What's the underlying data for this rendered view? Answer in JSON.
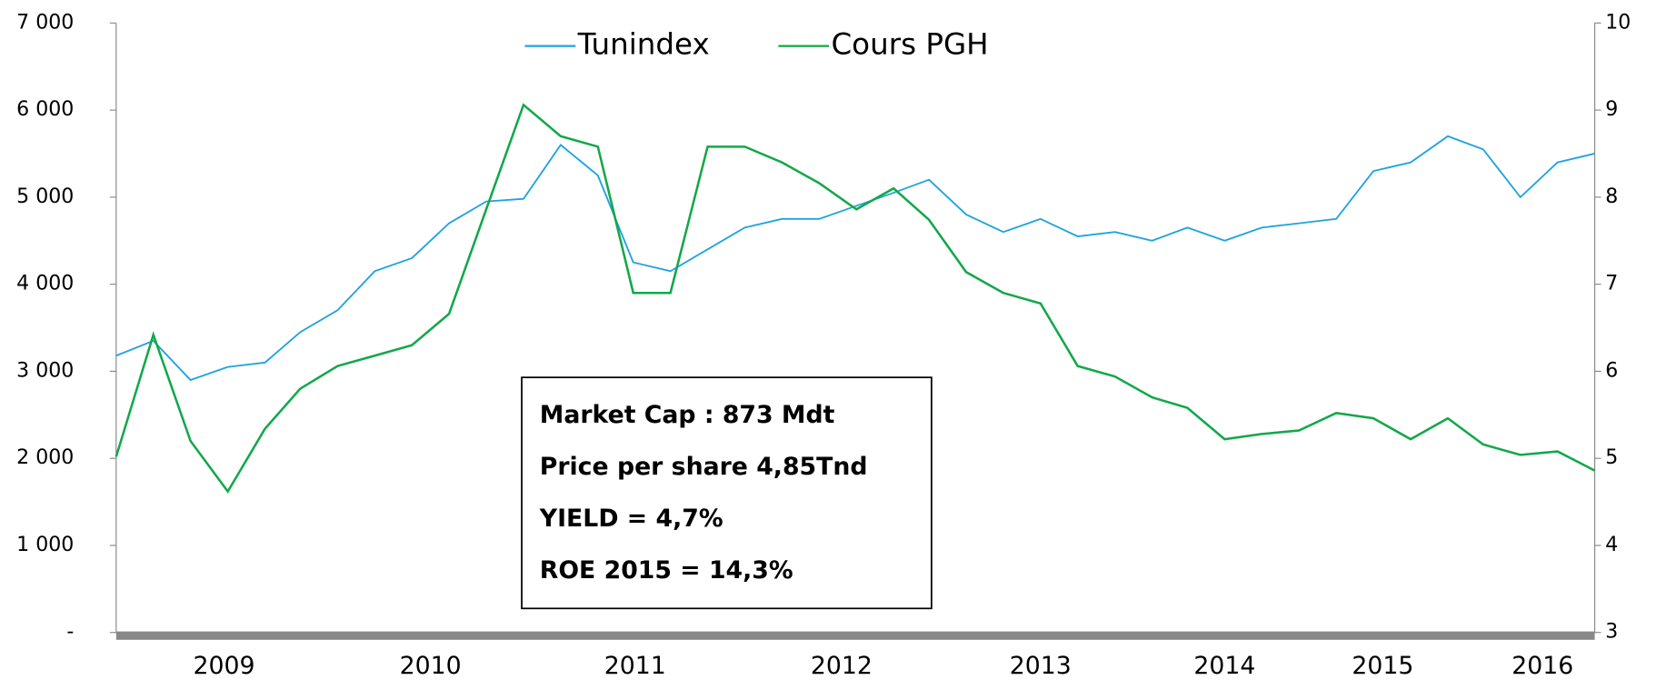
{
  "chart_data": {
    "type": "line",
    "x": [
      2008.5,
      2008.7,
      2008.9,
      2009.1,
      2009.3,
      2009.49,
      2009.69,
      2009.89,
      2010.09,
      2010.29,
      2010.49,
      2010.69,
      2010.89,
      2011.09,
      2011.28,
      2011.48,
      2011.68,
      2011.88,
      2012.08,
      2012.28,
      2012.48,
      2012.68,
      2012.87,
      2013.07,
      2013.27,
      2013.47,
      2013.67,
      2013.87,
      2014.07,
      2014.26,
      2014.46,
      2014.66,
      2014.86,
      2015.06,
      2015.26,
      2015.46,
      2015.66,
      2015.85,
      2016.05,
      2016.25,
      2016.45
    ],
    "series": [
      {
        "name": "Tunindex",
        "color": "#1fa3e0",
        "values": [
          3180,
          3350,
          2900,
          3050,
          3100,
          3450,
          3700,
          4150,
          4300,
          4700,
          4950,
          4980,
          5600,
          5250,
          4250,
          4150,
          4400,
          4650,
          4750,
          4750,
          4900,
          5050,
          5200,
          4800,
          4600,
          4750,
          4550,
          4600,
          4500,
          4650,
          4500,
          4650,
          4700,
          4750,
          5300,
          5400,
          5700,
          5550,
          5000,
          5400,
          5500
        ]
      },
      {
        "name": "Cours PGH",
        "color": "#12a84a",
        "axis": "y2",
        "values": [
          5.02,
          6.42,
          5.2,
          4.62,
          5.34,
          5.8,
          6.06,
          6.18,
          6.3,
          6.66,
          7.86,
          9.06,
          8.7,
          8.58,
          6.9,
          6.9,
          8.58,
          8.58,
          8.4,
          8.16,
          7.86,
          8.1,
          7.74,
          7.14,
          6.9,
          6.78,
          6.06,
          5.94,
          5.7,
          5.58,
          5.22,
          5.28,
          5.32,
          5.52,
          5.46,
          5.22,
          5.46,
          5.16,
          5.04,
          5.08,
          4.86
        ]
      }
    ],
    "xlim": [
      2008.5,
      2016.45
    ],
    "xticks": [
      {
        "value": 2009.08,
        "label": "2009"
      },
      {
        "value": 2010.19,
        "label": "2010"
      },
      {
        "value": 2011.29,
        "label": "2011"
      },
      {
        "value": 2012.4,
        "label": "2012"
      },
      {
        "value": 2013.47,
        "label": "2013"
      },
      {
        "value": 2014.46,
        "label": "2014"
      },
      {
        "value": 2015.31,
        "label": "2015"
      },
      {
        "value": 2016.17,
        "label": "2016"
      }
    ],
    "ylim": [
      0,
      7000
    ],
    "yticks": [
      {
        "value": 0,
        "label": "-"
      },
      {
        "value": 1000,
        "label": "1 000"
      },
      {
        "value": 2000,
        "label": "2 000"
      },
      {
        "value": 3000,
        "label": "3 000"
      },
      {
        "value": 4000,
        "label": "4 000"
      },
      {
        "value": 5000,
        "label": "5 000"
      },
      {
        "value": 6000,
        "label": "6 000"
      },
      {
        "value": 7000,
        "label": "7 000"
      }
    ],
    "y2lim": [
      3,
      10
    ],
    "y2ticks": [
      3,
      4,
      5,
      6,
      7,
      8,
      9,
      10
    ],
    "legend": "top",
    "annotations": [
      "Market Cap : 873 Mdt",
      "Price per share 4,85Tnd",
      "YIELD =  4,7%",
      "ROE 2015 = 14,3%"
    ]
  }
}
